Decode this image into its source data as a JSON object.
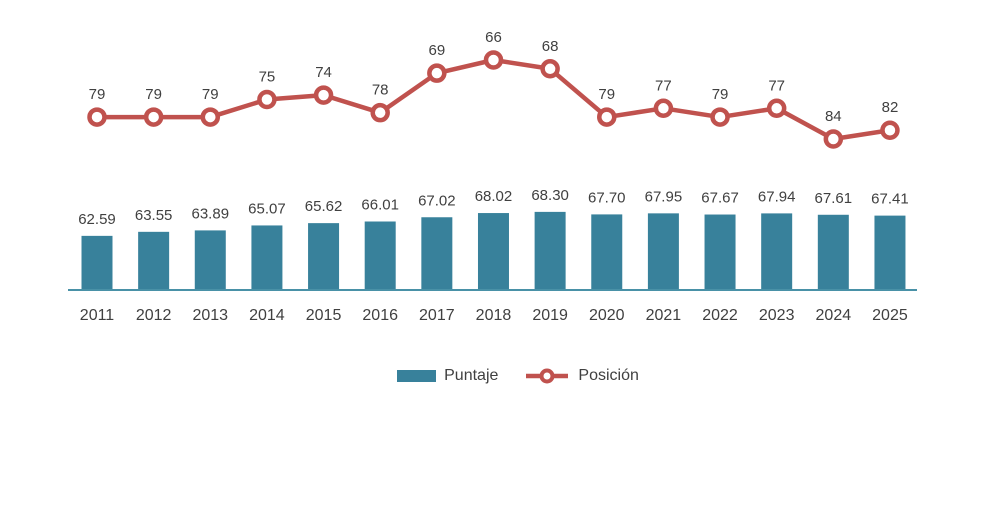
{
  "chart_data": {
    "type": "combo",
    "title": "",
    "xlabel": "",
    "ylabel": "",
    "grid": false,
    "legend_position": "bottom",
    "line_axis_inverted": true,
    "categories": [
      "2011",
      "2012",
      "2013",
      "2014",
      "2015",
      "2016",
      "2017",
      "2018",
      "2019",
      "2020",
      "2021",
      "2022",
      "2023",
      "2024",
      "2025"
    ],
    "series": [
      {
        "name": "Puntaje",
        "type": "bar",
        "values": [
          62.59,
          63.55,
          63.89,
          65.07,
          65.62,
          66.01,
          67.02,
          68.02,
          68.3,
          67.7,
          67.95,
          67.67,
          67.94,
          67.61,
          67.41
        ],
        "labels": [
          "62.59",
          "63.55",
          "63.89",
          "65.07",
          "65.62",
          "66.01",
          "67.02",
          "68.02",
          "68.30",
          "67.70",
          "67.95",
          "67.67",
          "67.94",
          "67.61",
          "67.41"
        ],
        "color": "#38819B"
      },
      {
        "name": "Posición",
        "type": "line",
        "values": [
          79,
          79,
          79,
          75,
          74,
          78,
          69,
          66,
          68,
          79,
          77,
          79,
          77,
          84,
          82
        ],
        "labels": [
          "79",
          "79",
          "79",
          "75",
          "74",
          "78",
          "69",
          "66",
          "68",
          "79",
          "77",
          "79",
          "77",
          "84",
          "82"
        ],
        "color": "#C0524E",
        "marker": "circle-open"
      }
    ]
  },
  "legend": {
    "items": [
      {
        "label": "Puntaje",
        "swatch": "bar",
        "color": "#38819B"
      },
      {
        "label": "Posición",
        "swatch": "line-marker",
        "color": "#C0524E"
      }
    ]
  },
  "colors": {
    "bar": "#38819B",
    "line": "#C0524E",
    "axis_line": "#4991A7",
    "text": "#404040",
    "background": "#FFFFFF"
  }
}
